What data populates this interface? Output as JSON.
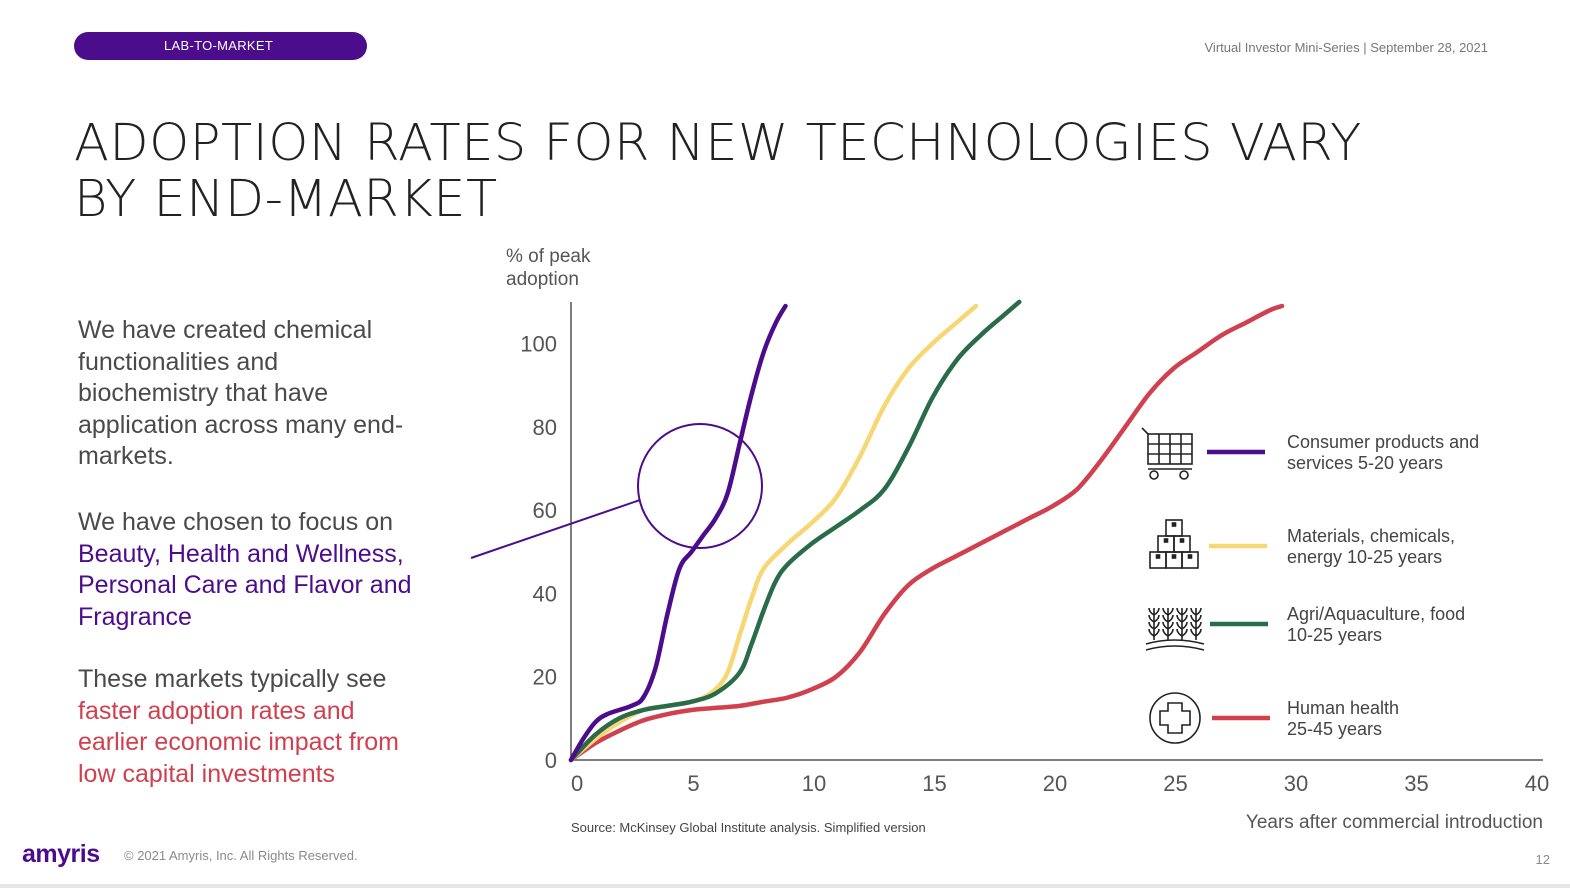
{
  "header": {
    "section_tag": "LAB-TO-MARKET",
    "event": "Virtual Investor Mini-Series | September 28, 2021"
  },
  "title": {
    "line1": "ADOPTION RATES FOR NEW TECHNOLOGIES VARY",
    "line2": "BY END-MARKET"
  },
  "body": {
    "p1": [
      "We have created chemical",
      "functionalities and",
      "biochemistry that have",
      "application across many end-",
      "markets."
    ],
    "p2_plain": "We have chosen to focus on",
    "p2_highlight": [
      "Beauty, Health and Wellness,",
      "Personal Care and Flavor and",
      "Fragrance"
    ],
    "p3_plain": "These markets typically see",
    "p3_highlight": [
      "faster adoption rates and",
      "earlier economic impact from",
      "low capital investments"
    ]
  },
  "chart_data": {
    "type": "line",
    "ylabel": [
      "% of peak",
      "adoption"
    ],
    "xlabel": "Years after commercial introduction",
    "xlim": [
      0,
      40
    ],
    "ylim": [
      0,
      110
    ],
    "xticks": [
      0,
      5,
      10,
      15,
      20,
      25,
      30,
      35,
      40
    ],
    "yticks": [
      0,
      20,
      40,
      60,
      80,
      100
    ],
    "legend_position": "right",
    "series": [
      {
        "name": [
          "Consumer products and",
          "services 5-20 years"
        ],
        "color": "#4b0d8c",
        "icon": "shopping-cart-icon",
        "points": [
          [
            0,
            0
          ],
          [
            0.5,
            5
          ],
          [
            1,
            9
          ],
          [
            1.5,
            11
          ],
          [
            2.5,
            13
          ],
          [
            3,
            15
          ],
          [
            3.5,
            22
          ],
          [
            4,
            35
          ],
          [
            4.5,
            46
          ],
          [
            5,
            50
          ],
          [
            5.5,
            54
          ],
          [
            6,
            58
          ],
          [
            6.5,
            64
          ],
          [
            7,
            76
          ],
          [
            7.5,
            88
          ],
          [
            8,
            98
          ],
          [
            8.5,
            105
          ],
          [
            8.9,
            109
          ]
        ]
      },
      {
        "name": [
          "Materials, chemicals,",
          "energy 10-25 years"
        ],
        "color": "#f7d774",
        "icon": "boxes-icon",
        "points": [
          [
            0,
            0
          ],
          [
            1,
            5
          ],
          [
            2,
            9
          ],
          [
            3,
            12
          ],
          [
            4,
            13
          ],
          [
            5,
            14
          ],
          [
            5.5,
            15
          ],
          [
            6,
            17
          ],
          [
            6.5,
            21
          ],
          [
            7,
            30
          ],
          [
            7.5,
            39
          ],
          [
            8,
            46
          ],
          [
            9,
            52
          ],
          [
            10,
            57
          ],
          [
            11,
            63
          ],
          [
            12,
            73
          ],
          [
            13,
            85
          ],
          [
            14,
            94
          ],
          [
            15,
            100
          ],
          [
            16,
            105
          ],
          [
            16.8,
            109
          ]
        ]
      },
      {
        "name": [
          "Agri/Aquaculture, food",
          "10-25 years"
        ],
        "color": "#2a6b4a",
        "icon": "wheat-field-icon",
        "points": [
          [
            0,
            0
          ],
          [
            1,
            6
          ],
          [
            2,
            10
          ],
          [
            3,
            12
          ],
          [
            4,
            13
          ],
          [
            5,
            14
          ],
          [
            6,
            16
          ],
          [
            7,
            21
          ],
          [
            7.5,
            28
          ],
          [
            8,
            36
          ],
          [
            8.5,
            43
          ],
          [
            9,
            47
          ],
          [
            10,
            52
          ],
          [
            11,
            56
          ],
          [
            12,
            60
          ],
          [
            13,
            65
          ],
          [
            14,
            75
          ],
          [
            15,
            87
          ],
          [
            16,
            96
          ],
          [
            17,
            102
          ],
          [
            18,
            107
          ],
          [
            18.6,
            110
          ]
        ]
      },
      {
        "name": [
          "Human health",
          "25-45 years"
        ],
        "color": "#d0404f",
        "icon": "medical-cross-icon",
        "points": [
          [
            0,
            0
          ],
          [
            1,
            4
          ],
          [
            2,
            7
          ],
          [
            3,
            9.5
          ],
          [
            4,
            11
          ],
          [
            5,
            12
          ],
          [
            6,
            12.5
          ],
          [
            7,
            13
          ],
          [
            8,
            14
          ],
          [
            9,
            15
          ],
          [
            10,
            17
          ],
          [
            11,
            20
          ],
          [
            12,
            26
          ],
          [
            13,
            35
          ],
          [
            14,
            42
          ],
          [
            15,
            46
          ],
          [
            16,
            49
          ],
          [
            17,
            52
          ],
          [
            18,
            55
          ],
          [
            19,
            58
          ],
          [
            20,
            61
          ],
          [
            21,
            65
          ],
          [
            22,
            72
          ],
          [
            23,
            80
          ],
          [
            24,
            88
          ],
          [
            25,
            94
          ],
          [
            26,
            98
          ],
          [
            27,
            102
          ],
          [
            28,
            105
          ],
          [
            29,
            108
          ],
          [
            29.5,
            109
          ]
        ]
      }
    ]
  },
  "source": "Source: McKinsey Global Institute analysis. Simplified version",
  "footer": {
    "logo": "amyris",
    "copyright": "© 2021 Amyris, Inc. All Rights Reserved.",
    "page_number": "12"
  }
}
